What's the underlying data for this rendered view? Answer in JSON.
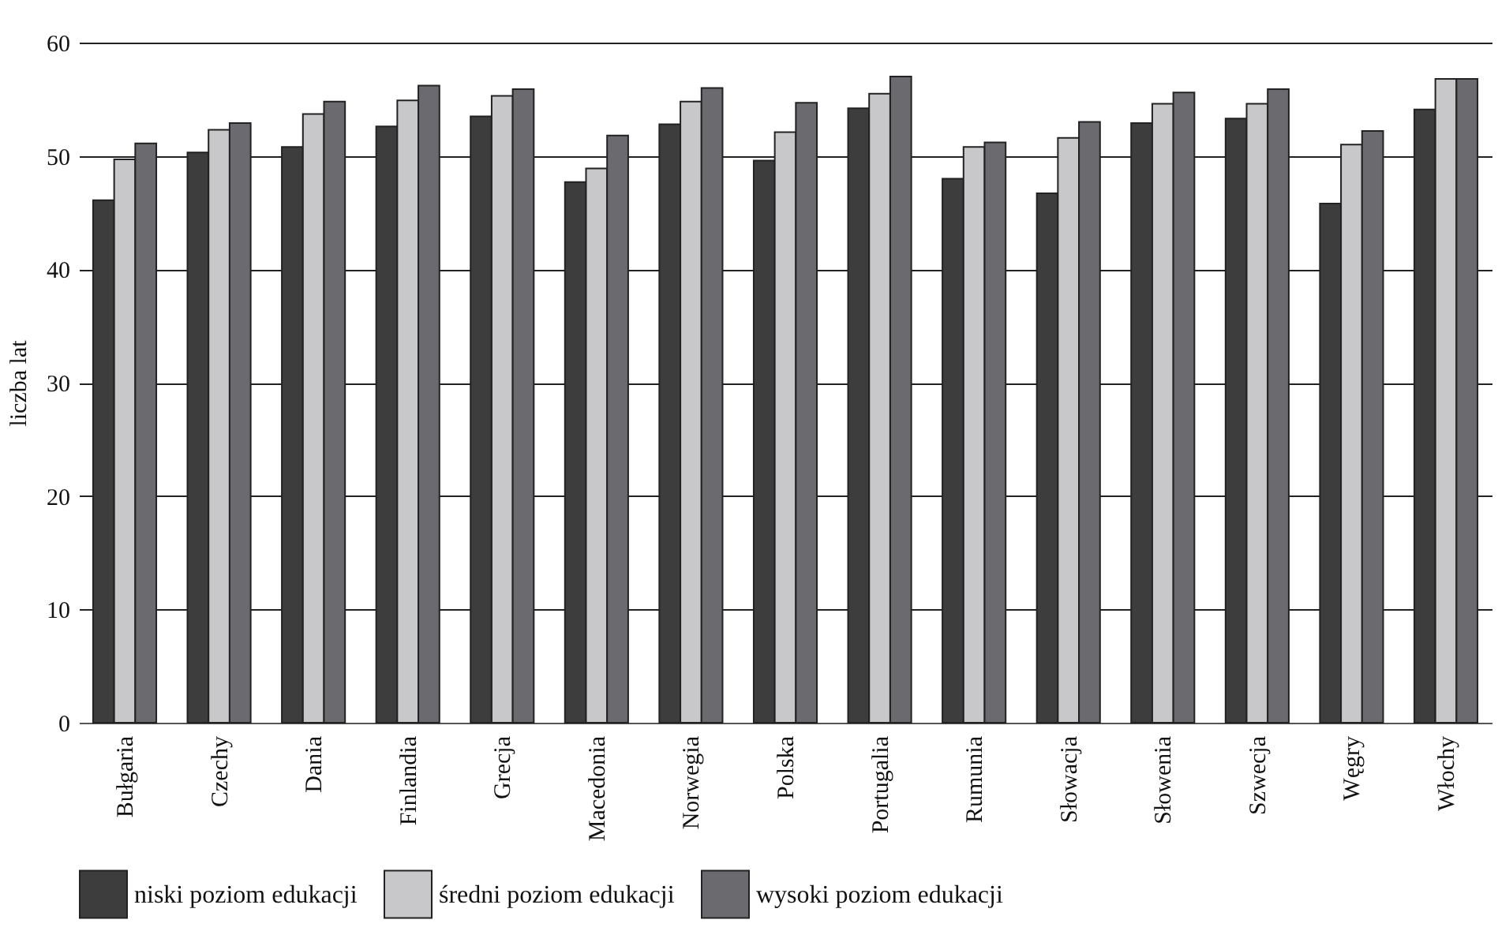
{
  "chart_data": {
    "type": "bar",
    "ylabel": "liczba lat",
    "categories": [
      "Bułgaria",
      "Czechy",
      "Dania",
      "Finlandia",
      "Grecja",
      "Macedonia",
      "Norwegia",
      "Polska",
      "Portugalia",
      "Rumunia",
      "Słowacja",
      "Słowenia",
      "Szwecja",
      "Węgry",
      "Włochy"
    ],
    "series": [
      {
        "name": "niski poziom edukacji",
        "color": "#3d3d3d",
        "values": [
          46.1,
          50.3,
          50.8,
          52.6,
          53.5,
          47.7,
          52.8,
          49.6,
          54.2,
          48.0,
          46.7,
          52.9,
          53.3,
          45.8,
          54.1
        ]
      },
      {
        "name": "średni poziom edukacji",
        "color": "#c8c8cb",
        "values": [
          49.7,
          52.3,
          53.7,
          54.9,
          55.3,
          48.9,
          54.8,
          52.1,
          55.5,
          50.8,
          51.6,
          54.6,
          54.6,
          51.0,
          56.8
        ]
      },
      {
        "name": "wysoki poziom edukacji",
        "color": "#6b6b6f",
        "values": [
          51.1,
          52.9,
          54.8,
          56.2,
          55.9,
          51.8,
          56.0,
          54.7,
          57.0,
          51.2,
          53.0,
          55.6,
          55.9,
          52.2,
          56.8
        ]
      }
    ],
    "ylim": [
      0,
      60
    ],
    "yticks": [
      0,
      10,
      20,
      30,
      40,
      50,
      60
    ],
    "grid": "y",
    "legend": "bottom"
  }
}
